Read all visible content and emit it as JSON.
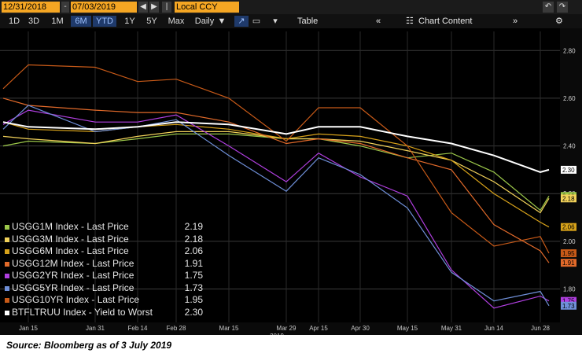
{
  "toolbar": {
    "start_date": "12/31/2018",
    "end_date": "07/03/2019",
    "currency": "Local CCY"
  },
  "periods": [
    "1D",
    "3D",
    "1M",
    "6M",
    "YTD",
    "1Y",
    "5Y",
    "Max"
  ],
  "active_periods": [
    "6M",
    "YTD"
  ],
  "frequency": "Daily",
  "table_label": "Table",
  "chart_content_label": "Chart Content",
  "caption": "Source: Bloomberg as of 3 July 2019",
  "colors": {
    "USGG1M": "#9cc84a",
    "USGG3M": "#f2d25a",
    "USGG6M": "#d7a21a",
    "USGG12M": "#e26a2a",
    "USGG2YR": "#b03fe0",
    "USGG5YR": "#6f8fd8",
    "USGG10YR": "#c85a18",
    "BTFLTRUU": "#ffffff"
  },
  "chart_data": {
    "type": "line",
    "xlabel": "2019",
    "ylim": [
      1.66,
      2.88
    ],
    "x_ticks": [
      "Jan 15",
      "Jan 31",
      "Feb 14",
      "Feb 28",
      "Mar 15",
      "Mar 29",
      "Apr 15",
      "Apr 30",
      "May 15",
      "May 31",
      "Jun 14",
      "Jun 28"
    ],
    "y_ticks": [
      "1.80",
      "2.00",
      "2.20",
      "2.40",
      "2.60",
      "2.80"
    ],
    "x": [
      "Jan 2",
      "Jan 15",
      "Jan 31",
      "Feb 14",
      "Feb 28",
      "Mar 15",
      "Mar 29",
      "Apr 15",
      "Apr 30",
      "May 15",
      "May 31",
      "Jun 14",
      "Jun 28",
      "Jul 3"
    ],
    "series": [
      {
        "key": "USGG1M",
        "name": "USGG1M Index - Last Price",
        "last": "2.19",
        "values": [
          2.4,
          2.42,
          2.41,
          2.43,
          2.45,
          2.45,
          2.43,
          2.43,
          2.4,
          2.35,
          2.37,
          2.29,
          2.13,
          2.19
        ]
      },
      {
        "key": "USGG3M",
        "name": "USGG3M Index - Last Price",
        "last": "2.18",
        "values": [
          2.44,
          2.43,
          2.41,
          2.44,
          2.46,
          2.46,
          2.43,
          2.43,
          2.42,
          2.38,
          2.34,
          2.25,
          2.12,
          2.18
        ]
      },
      {
        "key": "USGG6M",
        "name": "USGG6M Index - Last Price",
        "last": "2.06",
        "values": [
          2.5,
          2.47,
          2.46,
          2.48,
          2.49,
          2.47,
          2.43,
          2.45,
          2.44,
          2.4,
          2.34,
          2.2,
          2.08,
          2.06
        ]
      },
      {
        "key": "USGG12M",
        "name": "USGG12M Index - Last Price",
        "last": "1.91",
        "values": [
          2.6,
          2.57,
          2.55,
          2.54,
          2.54,
          2.5,
          2.41,
          2.43,
          2.41,
          2.35,
          2.3,
          2.07,
          1.96,
          1.91
        ]
      },
      {
        "key": "USGG2YR",
        "name": "USGG2YR Index - Last Price",
        "last": "1.75",
        "values": [
          2.49,
          2.55,
          2.5,
          2.5,
          2.53,
          2.4,
          2.25,
          2.37,
          2.27,
          2.19,
          1.88,
          1.72,
          1.77,
          1.75
        ]
      },
      {
        "key": "USGG5YR",
        "name": "USGG5YR Index - Last Price",
        "last": "1.73",
        "values": [
          2.47,
          2.57,
          2.46,
          2.48,
          2.51,
          2.36,
          2.21,
          2.35,
          2.28,
          2.14,
          1.87,
          1.75,
          1.79,
          1.73
        ]
      },
      {
        "key": "USGG10YR",
        "name": "USGG10YR Index - Last Price",
        "last": "1.95",
        "values": [
          2.64,
          2.74,
          2.73,
          2.67,
          2.68,
          2.6,
          2.42,
          2.56,
          2.56,
          2.4,
          2.12,
          1.98,
          2.02,
          1.95
        ]
      },
      {
        "key": "BTFLTRUU",
        "name": "BTFLTRUU Index - Yield to Worst",
        "last": "2.30",
        "values": [
          2.5,
          2.48,
          2.47,
          2.48,
          2.5,
          2.49,
          2.45,
          2.48,
          2.48,
          2.44,
          2.41,
          2.36,
          2.29,
          2.3
        ]
      }
    ],
    "grid": true,
    "legend": "bottom-left"
  }
}
